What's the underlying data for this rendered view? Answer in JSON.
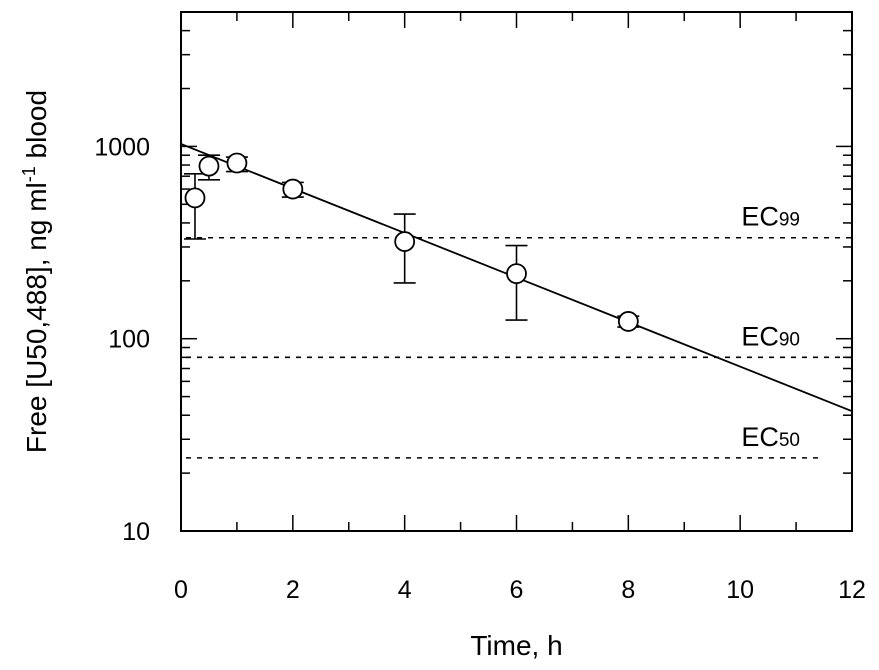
{
  "chart_data": {
    "type": "scatter",
    "title": "",
    "xlabel": "Time, h",
    "ylabel_parts": {
      "main": "Free [U50,488], ng ml",
      "superscript": "-1",
      "tail": " blood"
    },
    "xlim": [
      0,
      12
    ],
    "ylim": [
      10,
      5000
    ],
    "yscale": "log",
    "grid": false,
    "xticks": [
      0,
      2,
      4,
      6,
      8,
      10,
      12
    ],
    "xtick_labels": [
      "0",
      "2",
      "4",
      "6",
      "8",
      "10",
      "12"
    ],
    "yticks": [
      10,
      100,
      1000
    ],
    "ytick_labels": [
      "10",
      "100",
      "1000"
    ],
    "series": [
      {
        "marker": "open-circle",
        "points": [
          {
            "x": 0.25,
            "y": 540,
            "err_low": 330,
            "err_high": 720
          },
          {
            "x": 0.5,
            "y": 790,
            "err_low": 670,
            "err_high": 900
          },
          {
            "x": 1,
            "y": 820,
            "err_low": 740,
            "err_high": 880
          },
          {
            "x": 2,
            "y": 600,
            "err_low": 545,
            "err_high": 650
          },
          {
            "x": 4,
            "y": 320,
            "err_low": 195,
            "err_high": 445
          },
          {
            "x": 6,
            "y": 218,
            "err_low": 125,
            "err_high": 305
          },
          {
            "x": 8,
            "y": 123,
            "err_low": 115,
            "err_high": 131
          }
        ]
      }
    ],
    "fit_line": {
      "style": "solid",
      "x": [
        0,
        12
      ],
      "y": [
        1030,
        42
      ]
    },
    "reference_lines": [
      {
        "label_main": "EC",
        "label_sub": "99",
        "y": 335,
        "x_end": 12
      },
      {
        "label_main": "EC",
        "label_sub": "90",
        "y": 80,
        "x_end": 12
      },
      {
        "label_main": "EC",
        "label_sub": "50",
        "y": 24,
        "x_end": 11.5
      }
    ]
  }
}
